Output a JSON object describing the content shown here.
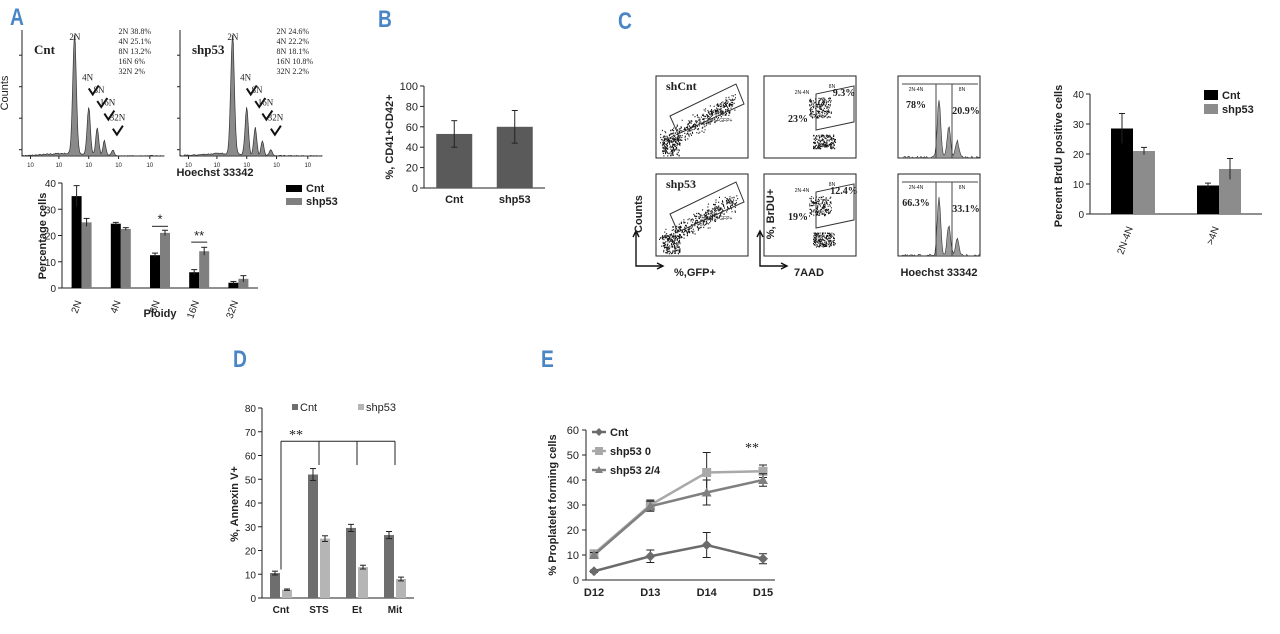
{
  "panel_labels": [
    "A",
    "B",
    "C",
    "D",
    "E"
  ],
  "chart_data": [
    {
      "id": "A_hist_cnt",
      "type": "histogram",
      "sample_label": "Cnt",
      "ylabel": "Counts",
      "peak_labels": [
        "2N",
        "4N",
        "8N",
        "16N",
        "32N"
      ],
      "legend_lines": [
        "2N 38.8%",
        "4N 25.1%",
        "8N 13.2%",
        "16N 6%",
        "32N 2%"
      ]
    },
    {
      "id": "A_hist_shp53",
      "type": "histogram",
      "sample_label": "shp53",
      "xlabel": "Hoechst 33342",
      "peak_labels": [
        "2N",
        "4N",
        "8N",
        "16N",
        "32N"
      ],
      "legend_lines": [
        "2N 24.6%",
        "4N 22.2%",
        "8N 18.1%",
        "16N 10.8%",
        "32N 2.2%"
      ]
    },
    {
      "id": "A_bar",
      "type": "bar",
      "categories": [
        "2N",
        "4N",
        "8N",
        "16N",
        "32N"
      ],
      "series": [
        {
          "name": "Cnt",
          "color": "#000000",
          "values": [
            35,
            24.5,
            12.5,
            6,
            2
          ],
          "errors": [
            4,
            0.5,
            0.8,
            1,
            0.5
          ]
        },
        {
          "name": "shp53",
          "color": "#7f7f7f",
          "values": [
            25,
            22.5,
            21,
            14,
            3.5
          ],
          "errors": [
            1.5,
            0.5,
            1,
            1.5,
            1.2
          ]
        }
      ],
      "ylabel": "Percentage cells",
      "xlabel": "Ploidy",
      "ylim": [
        0,
        40
      ],
      "yticks": [
        "0",
        "10",
        "20",
        "30",
        "40"
      ],
      "significance": [
        "*",
        "**"
      ]
    },
    {
      "id": "B_bar",
      "type": "bar",
      "categories": [
        "Cnt",
        "shp53"
      ],
      "series": [
        {
          "name": "",
          "color": "#5a5a5a",
          "values": [
            53,
            60
          ],
          "errors": [
            13,
            16
          ]
        }
      ],
      "ylabel": "%, CD41+CD42+",
      "ylim": [
        0,
        100
      ],
      "yticks": [
        "0",
        "20",
        "40",
        "60",
        "80",
        "100"
      ]
    },
    {
      "id": "C_flow",
      "type": "scatter",
      "rows": [
        {
          "label": "shCnt",
          "gate": "CD41+GFP+",
          "brdu_left": "23%",
          "brdu_right": "9.3%",
          "hist_left": "78%",
          "hist_right": "20.9%"
        },
        {
          "label": "shp53",
          "gate": "CD41+GFP+",
          "brdu_left": "19%",
          "brdu_right": "12.4%",
          "hist_left": "66.3%",
          "hist_right": "33.1%"
        }
      ],
      "gate_labels": [
        "2N-4N",
        "8N"
      ],
      "axis_labels": {
        "counts": "Counts",
        "gfp": "%,GFP+",
        "brdu": "%, BrDU+",
        "aad": "7AAD",
        "hoechst": "Hoechst 33342"
      }
    },
    {
      "id": "C_bar",
      "type": "bar",
      "categories": [
        "2N-4N",
        ">4N"
      ],
      "series": [
        {
          "name": "Cnt",
          "color": "#000000",
          "values": [
            28.5,
            9.5
          ],
          "errors": [
            5,
            0.8
          ]
        },
        {
          "name": "shp53",
          "color": "#8c8c8c",
          "values": [
            21,
            15
          ],
          "errors": [
            1.2,
            3.5
          ]
        }
      ],
      "ylabel": "Percent BrdU positive cells",
      "ylim": [
        0,
        40
      ],
      "yticks": [
        "0",
        "10",
        "20",
        "30",
        "40"
      ]
    },
    {
      "id": "D_bar",
      "type": "bar",
      "categories": [
        "Cnt",
        "STS",
        "Et",
        "Mit"
      ],
      "series": [
        {
          "name": "Cnt",
          "color": "#6e6e6e",
          "values": [
            10.5,
            52,
            29.5,
            26.5
          ],
          "errors": [
            0.8,
            2.5,
            1.5,
            1.5
          ]
        },
        {
          "name": "shp53",
          "color": "#b5b5b5",
          "values": [
            3.5,
            25,
            13,
            8
          ],
          "errors": [
            0.3,
            1.2,
            0.8,
            0.8
          ]
        }
      ],
      "ylabel": "%, Annexin V+",
      "ylim": [
        0,
        80
      ],
      "yticks": [
        "0",
        "10",
        "20",
        "30",
        "40",
        "50",
        "60",
        "70",
        "80"
      ],
      "significance": [
        "**"
      ]
    },
    {
      "id": "E_line",
      "type": "line",
      "x": [
        "D12",
        "D13",
        "D14",
        "D15"
      ],
      "series": [
        {
          "name": "Cnt",
          "color": "#6b6b6b",
          "marker": "diamond",
          "values": [
            3.5,
            9.5,
            14,
            8.5
          ],
          "errors": [
            0.5,
            2.5,
            5,
            2
          ]
        },
        {
          "name": "shp53 0",
          "color": "#a9a9a9",
          "marker": "square",
          "values": [
            10.5,
            30,
            43,
            43.5
          ],
          "errors": [
            1,
            2,
            8,
            2.5
          ]
        },
        {
          "name": "shp53 2/4",
          "color": "#808080",
          "marker": "triangle",
          "values": [
            10,
            29.5,
            35,
            40
          ],
          "errors": [
            1,
            2,
            5,
            2.5
          ]
        }
      ],
      "ylabel": "% Proplatelet forming cells",
      "ylim": [
        0,
        60
      ],
      "yticks": [
        "0",
        "10",
        "20",
        "30",
        "40",
        "50",
        "60"
      ],
      "significance": [
        "**"
      ]
    }
  ]
}
